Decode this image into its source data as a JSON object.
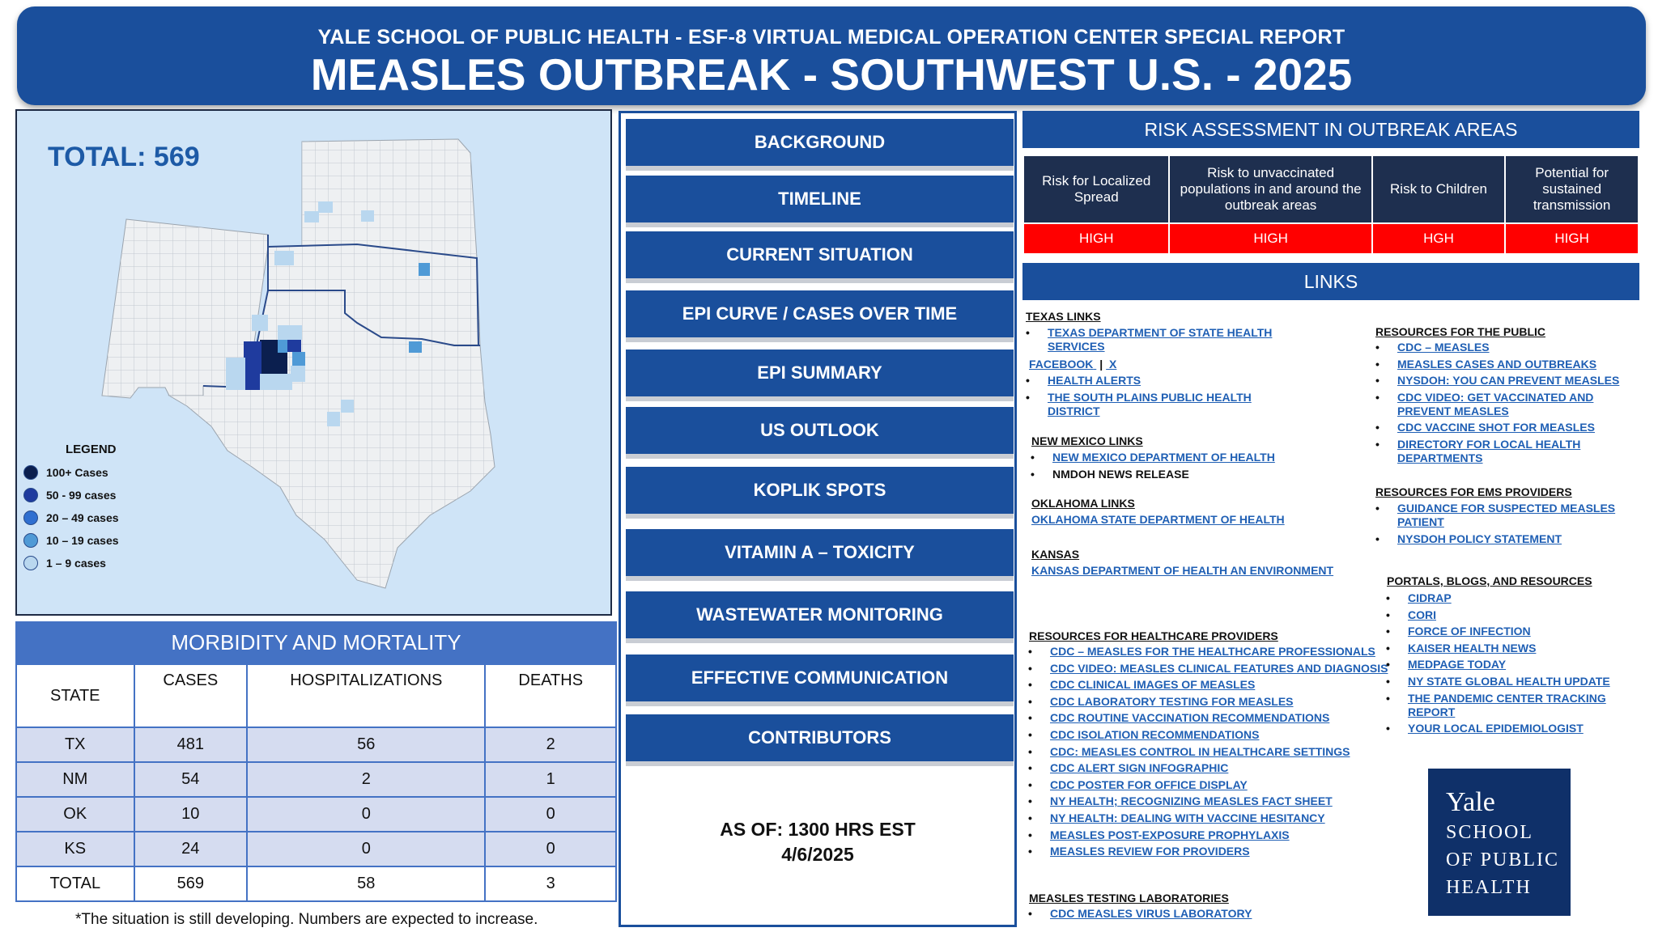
{
  "header": {
    "subtitle": "YALE  SCHOOL OF PUBLIC HEALTH - ESF-8 VIRTUAL MEDICAL OPERATION CENTER SPECIAL REPORT",
    "title": "MEASLES OUTBREAK - SOUTHWEST U.S.  -  2025"
  },
  "map": {
    "total_label": "TOTAL: 569",
    "legend_title": "LEGEND",
    "legend": [
      {
        "label": "100+ Cases",
        "color": "#0b1f4f"
      },
      {
        "label": "50  -  99 cases",
        "color": "#1f3b9e"
      },
      {
        "label": "20 – 49 cases",
        "color": "#2f6fd0"
      },
      {
        "label": "10 – 19 cases",
        "color": "#4f9ad6"
      },
      {
        "label": "1 –  9 cases",
        "color": "#b9d7ef"
      }
    ]
  },
  "morbidity": {
    "title": "MORBIDITY AND MORTALITY",
    "headers": [
      "STATE",
      "CASES",
      "HOSPITALIZATIONS",
      "DEATHS"
    ],
    "rows": [
      {
        "state": "TX",
        "cases": "481",
        "hosp": "56",
        "deaths": "2"
      },
      {
        "state": "NM",
        "cases": "54",
        "hosp": "2",
        "deaths": "1"
      },
      {
        "state": "OK",
        "cases": "10",
        "hosp": "0",
        "deaths": "0"
      },
      {
        "state": "KS",
        "cases": "24",
        "hosp": "0",
        "deaths": "0"
      },
      {
        "state": "TOTAL",
        "cases": "569",
        "hosp": "58",
        "deaths": "3"
      }
    ],
    "footnote": "*The situation is still developing. Numbers are expected to increase."
  },
  "nav": {
    "buttons": [
      "BACKGROUND",
      "TIMELINE",
      "CURRENT SITUATION",
      "EPI  CURVE / CASES OVER TIME",
      "EPI SUMMARY",
      "US OUTLOOK",
      "KOPLIK SPOTS",
      "VITAMIN A – TOXICITY",
      "WASTEWATER MONITORING",
      "EFFECTIVE COMMUNICATION",
      "CONTRIBUTORS"
    ],
    "as_of_line1": "AS OF: 1300 HRS EST",
    "as_of_line2": "4/6/2025"
  },
  "risk": {
    "title": "RISK ASSESSMENT IN OUTBREAK AREAS",
    "headers": [
      "Risk for Localized Spread",
      "Risk to  unvaccinated populations in and around the outbreak areas",
      "Risk to Children",
      "Potential for sustained transmission"
    ],
    "values": [
      "HIGH",
      "HIGH",
      "HGH",
      "HIGH"
    ]
  },
  "links": {
    "title": "LINKS",
    "texas": {
      "head": "TEXAS LINKS",
      "item1": "TEXAS DEPARTMENT OF STATE HEALTH SERVICES",
      "facebook": "FACEBOOK",
      "sep": "|",
      "x": "X",
      "item2": "HEALTH ALERTS",
      "item3": "THE SOUTH PLAINS PUBLIC HEALTH DISTRICT"
    },
    "nm": {
      "head": "NEW MEXICO LINKS",
      "item1": "NEW MEXICO DEPARTMENT OF HEALTH",
      "item2": "NMDOH NEWS RELEASE"
    },
    "ok": {
      "head": "OKLAHOMA LINKS",
      "item1": "OKLAHOMA STATE DEPARTMENT OF HEALTH"
    },
    "ks": {
      "head": "KANSAS",
      "item1": "KANSAS DEPARTMENT OF HEALTH AN ENVIRONMENT"
    },
    "providers": {
      "head": "RESOURCES FOR HEALTHCARE PROVIDERS",
      "items": [
        "CDC – MEASLES FOR THE HEALTHCARE PROFESSIONALS",
        "CDC VIDEO: MEASLES CLINICAL FEATURES AND DIAGNOSIS",
        "CDC CLINICAL IMAGES OF MEASLES",
        "CDC LABORATORY TESTING FOR MEASLES",
        "CDC ROUTINE VACCINATION RECOMMENDATIONS",
        "CDC ISOLATION RECOMMENDATIONS",
        "CDC: MEASLES CONTROL IN HEALTHCARE SETTINGS",
        "CDC ALERT SIGN INFOGRAPHIC",
        "CDC POSTER FOR OFFICE DISPLAY",
        "NY HEALTH; RECOGNIZING MEASLES FACT SHEET",
        "NY HEALTH: DEALING WITH VACCINE HESITANCY",
        "MEASLES POST-EXPOSURE PROPHYLAXIS",
        "MEASLES REVIEW FOR PROVIDERS"
      ]
    },
    "labs": {
      "head": "MEASLES TESTING LABORATORIES",
      "items": [
        "CDC MEASLES VIRUS LABORATORY"
      ]
    },
    "public": {
      "head": "RESOURCES FOR THE PUBLIC",
      "items": [
        "CDC – MEASLES",
        "MEASLES CASES AND OUTBREAKS",
        "NYSDOH: YOU CAN PREVENT MEASLES",
        "CDC VIDEO: GET VACCINATED AND PREVENT MEASLES",
        "CDC VACCINE SHOT FOR MEASLES",
        "DIRECTORY FOR LOCAL HEALTH DEPARTMENTS"
      ]
    },
    "ems": {
      "head": "RESOURCES FOR EMS PROVIDERS",
      "items": [
        "GUIDANCE FOR SUSPECTED MEASLES PATIENT",
        "NYSDOH POLICY STATEMENT"
      ]
    },
    "portals": {
      "head": "PORTALS, BLOGS, AND RESOURCES",
      "items": [
        "CIDRAP",
        "CORI",
        "FORCE OF INFECTION",
        "KAISER HEALTH NEWS",
        "MEDPAGE TODAY",
        "NY STATE GLOBAL HEALTH UPDATE",
        "THE PANDEMIC CENTER TRACKING REPORT",
        "YOUR LOCAL EPIDEMIOLOGIST"
      ]
    }
  },
  "logo": {
    "line1": "Yale",
    "line2": "SCHOOL",
    "line3": "OF PUBLIC",
    "line4": "HEALTH"
  }
}
